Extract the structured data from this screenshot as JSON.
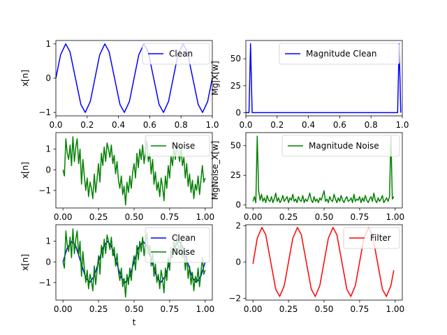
{
  "chart_data": [
    {
      "type": "line",
      "xlabel": "",
      "ylabel": "x[n]",
      "xlim": [
        0,
        1
      ],
      "ylim": [
        -1.1,
        1.1
      ],
      "xticks": [
        0.0,
        0.2,
        0.4,
        0.6,
        0.8,
        1.0
      ],
      "xtick_labels": [
        "0.0",
        "0.2",
        "0.4",
        "0.6",
        "0.8",
        "1.0"
      ],
      "yticks": [
        -1,
        0,
        1
      ],
      "ytick_labels": [
        "−1",
        "0",
        "1"
      ],
      "legend": "top-right",
      "series": [
        {
          "name": "Clean",
          "color": "#0000ff",
          "x": [
            0.0,
            0.03,
            0.063,
            0.09,
            0.125,
            0.16,
            0.188,
            0.22,
            0.25,
            0.28,
            0.313,
            0.34,
            0.375,
            0.41,
            0.438,
            0.47,
            0.5,
            0.53,
            0.563,
            0.59,
            0.625,
            0.66,
            0.688,
            0.72,
            0.75,
            0.78,
            0.813,
            0.84,
            0.875,
            0.91,
            0.938,
            0.97,
            1.0
          ],
          "y": [
            0.0,
            0.68,
            1.0,
            0.77,
            0.0,
            -0.77,
            -1.0,
            -0.68,
            0.0,
            0.68,
            1.0,
            0.77,
            0.0,
            -0.77,
            -1.0,
            -0.68,
            0.0,
            0.68,
            1.0,
            0.77,
            0.0,
            -0.77,
            -1.0,
            -0.68,
            0.0,
            0.68,
            1.0,
            0.77,
            0.0,
            -0.77,
            -1.0,
            -0.68,
            0.0
          ]
        }
      ]
    },
    {
      "type": "line",
      "xlabel": "",
      "ylabel": "Mg|X[w]",
      "xlim": [
        0,
        1
      ],
      "ylim": [
        -3,
        67
      ],
      "xticks": [
        0.0,
        0.2,
        0.4,
        0.6,
        0.8,
        1.0
      ],
      "xtick_labels": [
        "0.0",
        "0.2",
        "0.4",
        "0.6",
        "0.8",
        "1.0"
      ],
      "yticks": [
        0,
        25,
        50
      ],
      "ytick_labels": [
        "0",
        "25",
        "50"
      ],
      "legend": "top-right",
      "series": [
        {
          "name": "Magnitude Clean",
          "color": "#0000ff",
          "x": [
            0.0,
            0.01,
            0.02,
            0.03,
            0.04,
            0.05,
            0.5,
            0.95,
            0.96,
            0.97,
            0.98,
            0.99
          ],
          "y": [
            0,
            0,
            0,
            64,
            0,
            0,
            0,
            0,
            0,
            0,
            64,
            0
          ]
        }
      ]
    },
    {
      "type": "line",
      "xlabel": "",
      "ylabel": "x[n]",
      "xlim": [
        -0.05,
        1.05
      ],
      "ylim": [
        -1.85,
        1.8
      ],
      "xticks": [
        0.0,
        0.25,
        0.5,
        0.75,
        1.0
      ],
      "xtick_labels": [
        "0.00",
        "0.25",
        "0.50",
        "0.75",
        "1.00"
      ],
      "yticks": [
        -1,
        0,
        1
      ],
      "ytick_labels": [
        "−1",
        "0",
        "1"
      ],
      "legend": "top-right",
      "series": [
        {
          "name": "Noise",
          "color": "#008000",
          "x": [
            0.0,
            0.01,
            0.02,
            0.03,
            0.04,
            0.05,
            0.06,
            0.07,
            0.08,
            0.09,
            0.1,
            0.11,
            0.12,
            0.13,
            0.14,
            0.15,
            0.16,
            0.17,
            0.18,
            0.19,
            0.2,
            0.21,
            0.22,
            0.23,
            0.24,
            0.25,
            0.26,
            0.27,
            0.28,
            0.29,
            0.3,
            0.31,
            0.32,
            0.33,
            0.34,
            0.35,
            0.36,
            0.37,
            0.38,
            0.39,
            0.4,
            0.41,
            0.42,
            0.43,
            0.44,
            0.45,
            0.46,
            0.47,
            0.48,
            0.49,
            0.5,
            0.51,
            0.52,
            0.53,
            0.54,
            0.55,
            0.56,
            0.57,
            0.58,
            0.59,
            0.6,
            0.61,
            0.62,
            0.63,
            0.64,
            0.65,
            0.66,
            0.67,
            0.68,
            0.69,
            0.7,
            0.71,
            0.72,
            0.73,
            0.74,
            0.75,
            0.76,
            0.77,
            0.78,
            0.79,
            0.8,
            0.81,
            0.82,
            0.83,
            0.84,
            0.85,
            0.86,
            0.87,
            0.88,
            0.89,
            0.9,
            0.91,
            0.92,
            0.93,
            0.94,
            0.95,
            0.96,
            0.97,
            0.98,
            0.99,
            1.0
          ],
          "y": [
            0.0,
            -0.3,
            1.5,
            0.8,
            0.5,
            1.2,
            0.2,
            1.6,
            0.4,
            1.1,
            1.5,
            0.3,
            1.0,
            -0.7,
            0.5,
            -0.3,
            -1.0,
            -0.4,
            -1.3,
            -0.6,
            -0.9,
            -1.4,
            -0.2,
            -1.1,
            -0.4,
            0.3,
            -0.6,
            0.8,
            0.2,
            1.1,
            0.4,
            1.3,
            1.0,
            0.6,
            1.2,
            0.3,
            0.7,
            -0.2,
            0.4,
            -0.5,
            -0.9,
            -0.3,
            -1.2,
            -0.8,
            -1.7,
            -0.6,
            -1.1,
            -0.3,
            -0.9,
            -0.1,
            0.3,
            -0.4,
            0.8,
            0.1,
            1.0,
            0.5,
            1.2,
            0.3,
            0.9,
            1.4,
            0.4,
            0.8,
            -0.2,
            0.5,
            -0.7,
            -0.1,
            -1.0,
            -0.6,
            -1.3,
            -0.4,
            -0.8,
            -1.5,
            -0.3,
            -0.9,
            0.2,
            -0.4,
            0.7,
            0.2,
            1.0,
            0.5,
            1.3,
            0.8,
            0.4,
            1.1,
            0.2,
            0.6,
            -0.4,
            0.3,
            -0.8,
            -0.2,
            -1.1,
            -0.5,
            -1.4,
            -0.7,
            -1.0,
            -0.3,
            -1.2,
            -0.5,
            0.2,
            -0.6,
            -0.4
          ]
        }
      ]
    },
    {
      "type": "line",
      "xlabel": "",
      "ylabel": "MgNoise_X[w]",
      "xlim": [
        -0.05,
        1.05
      ],
      "ylim": [
        -2.5,
        61
      ],
      "xticks": [
        0.0,
        0.25,
        0.5,
        0.75,
        1.0
      ],
      "xtick_labels": [
        "0.00",
        "0.25",
        "0.50",
        "0.75",
        "1.00"
      ],
      "yticks": [
        0,
        25,
        50
      ],
      "ytick_labels": [
        "0",
        "25",
        "50"
      ],
      "legend": "top-right",
      "series": [
        {
          "name": "Magnitude Noise",
          "color": "#008000",
          "x": [
            0.0,
            0.01,
            0.02,
            0.03,
            0.04,
            0.05,
            0.06,
            0.07,
            0.08,
            0.09,
            0.1,
            0.11,
            0.12,
            0.13,
            0.14,
            0.15,
            0.16,
            0.17,
            0.18,
            0.19,
            0.2,
            0.21,
            0.22,
            0.23,
            0.24,
            0.25,
            0.26,
            0.27,
            0.28,
            0.29,
            0.3,
            0.31,
            0.32,
            0.33,
            0.34,
            0.35,
            0.36,
            0.37,
            0.38,
            0.39,
            0.4,
            0.41,
            0.42,
            0.43,
            0.44,
            0.45,
            0.46,
            0.47,
            0.48,
            0.49,
            0.5,
            0.51,
            0.52,
            0.53,
            0.54,
            0.55,
            0.56,
            0.57,
            0.58,
            0.59,
            0.6,
            0.61,
            0.62,
            0.63,
            0.64,
            0.65,
            0.66,
            0.67,
            0.68,
            0.69,
            0.7,
            0.71,
            0.72,
            0.73,
            0.74,
            0.75,
            0.76,
            0.77,
            0.78,
            0.79,
            0.8,
            0.81,
            0.82,
            0.83,
            0.84,
            0.85,
            0.86,
            0.87,
            0.88,
            0.89,
            0.9,
            0.91,
            0.92,
            0.93,
            0.94,
            0.95,
            0.96,
            0.97,
            0.98,
            0.99
          ],
          "y": [
            3,
            7,
            2,
            58,
            12,
            4,
            9,
            3,
            6,
            2,
            8,
            4,
            3,
            7,
            2,
            5,
            10,
            3,
            6,
            2,
            4,
            8,
            3,
            5,
            7,
            2,
            6,
            4,
            9,
            3,
            5,
            2,
            7,
            4,
            3,
            8,
            2,
            5,
            3,
            6,
            10,
            4,
            2,
            7,
            3,
            5,
            2,
            6,
            4,
            8,
            12,
            3,
            5,
            2,
            7,
            4,
            3,
            9,
            5,
            2,
            6,
            3,
            8,
            4,
            2,
            5,
            7,
            3,
            4,
            6,
            2,
            9,
            3,
            5,
            4,
            7,
            2,
            6,
            3,
            8,
            4,
            2,
            5,
            7,
            3,
            10,
            4,
            2,
            6,
            3,
            5,
            8,
            2,
            4,
            6,
            3,
            7,
            58,
            5,
            7
          ]
        }
      ]
    },
    {
      "type": "line",
      "xlabel": "t",
      "ylabel": "x[n]",
      "xlim": [
        -0.05,
        1.05
      ],
      "ylim": [
        -1.85,
        1.8
      ],
      "xticks": [
        0.0,
        0.25,
        0.5,
        0.75,
        1.0
      ],
      "xtick_labels": [
        "0.00",
        "0.25",
        "0.50",
        "0.75",
        "1.00"
      ],
      "yticks": [
        -1,
        0,
        1
      ],
      "ytick_labels": [
        "−1",
        "0",
        "1"
      ],
      "legend": "top-right",
      "series": [
        {
          "name": "Clean",
          "color": "#0000ff",
          "x": [
            0.0,
            0.03,
            0.063,
            0.09,
            0.125,
            0.16,
            0.188,
            0.22,
            0.25,
            0.28,
            0.313,
            0.34,
            0.375,
            0.41,
            0.438,
            0.47,
            0.5,
            0.53,
            0.563,
            0.59,
            0.625,
            0.66,
            0.688,
            0.72,
            0.75,
            0.78,
            0.813,
            0.84,
            0.875,
            0.91,
            0.938,
            0.97,
            1.0
          ],
          "y": [
            0.0,
            0.68,
            1.0,
            0.77,
            0.0,
            -0.77,
            -1.0,
            -0.68,
            0.0,
            0.68,
            1.0,
            0.77,
            0.0,
            -0.77,
            -1.0,
            -0.68,
            0.0,
            0.68,
            1.0,
            0.77,
            0.0,
            -0.77,
            -1.0,
            -0.68,
            0.0,
            0.68,
            1.0,
            0.77,
            0.0,
            -0.77,
            -1.0,
            -0.68,
            0.0
          ]
        },
        {
          "name": "Noise",
          "color": "#008000",
          "x": [
            0.0,
            0.01,
            0.02,
            0.03,
            0.04,
            0.05,
            0.06,
            0.07,
            0.08,
            0.09,
            0.1,
            0.11,
            0.12,
            0.13,
            0.14,
            0.15,
            0.16,
            0.17,
            0.18,
            0.19,
            0.2,
            0.21,
            0.22,
            0.23,
            0.24,
            0.25,
            0.26,
            0.27,
            0.28,
            0.29,
            0.3,
            0.31,
            0.32,
            0.33,
            0.34,
            0.35,
            0.36,
            0.37,
            0.38,
            0.39,
            0.4,
            0.41,
            0.42,
            0.43,
            0.44,
            0.45,
            0.46,
            0.47,
            0.48,
            0.49,
            0.5,
            0.51,
            0.52,
            0.53,
            0.54,
            0.55,
            0.56,
            0.57,
            0.58,
            0.59,
            0.6,
            0.61,
            0.62,
            0.63,
            0.64,
            0.65,
            0.66,
            0.67,
            0.68,
            0.69,
            0.7,
            0.71,
            0.72,
            0.73,
            0.74,
            0.75,
            0.76,
            0.77,
            0.78,
            0.79,
            0.8,
            0.81,
            0.82,
            0.83,
            0.84,
            0.85,
            0.86,
            0.87,
            0.88,
            0.89,
            0.9,
            0.91,
            0.92,
            0.93,
            0.94,
            0.95,
            0.96,
            0.97,
            0.98,
            0.99,
            1.0
          ],
          "y": [
            0.0,
            -0.3,
            1.5,
            0.8,
            0.5,
            1.2,
            0.2,
            1.6,
            0.4,
            1.1,
            1.5,
            0.3,
            1.0,
            -0.7,
            0.5,
            -0.3,
            -1.0,
            -0.4,
            -1.3,
            -0.6,
            -0.9,
            -1.4,
            -0.2,
            -1.1,
            -0.4,
            0.3,
            -0.6,
            0.8,
            0.2,
            1.1,
            0.4,
            1.3,
            1.0,
            0.6,
            1.2,
            0.3,
            0.7,
            -0.2,
            0.4,
            -0.5,
            -0.9,
            -0.3,
            -1.2,
            -0.8,
            -1.7,
            -0.6,
            -1.1,
            -0.3,
            -0.9,
            -0.1,
            0.3,
            -0.4,
            0.8,
            0.1,
            1.0,
            0.5,
            1.2,
            0.3,
            0.9,
            1.4,
            0.4,
            0.8,
            -0.2,
            0.5,
            -0.7,
            -0.1,
            -1.0,
            -0.6,
            -1.3,
            -0.4,
            -0.8,
            -1.5,
            -0.3,
            -0.9,
            0.2,
            -0.4,
            0.7,
            0.2,
            1.0,
            0.5,
            1.3,
            0.8,
            0.4,
            1.1,
            0.2,
            0.6,
            -0.4,
            0.3,
            -0.8,
            -0.2,
            -1.1,
            -0.5,
            -1.4,
            -0.7,
            -1.0,
            -0.3,
            -1.2,
            -0.5,
            0.2,
            -0.6,
            -0.4
          ]
        }
      ]
    },
    {
      "type": "line",
      "xlabel": "",
      "ylabel": "",
      "xlim": [
        -0.05,
        1.05
      ],
      "ylim": [
        -2.1,
        2.05
      ],
      "xticks": [
        0.0,
        0.25,
        0.5,
        0.75,
        1.0
      ],
      "xtick_labels": [
        "0.00",
        "0.25",
        "0.50",
        "0.75",
        "1.00"
      ],
      "yticks": [
        -2,
        0,
        2
      ],
      "ytick_labels": [
        "−2",
        "0",
        "2"
      ],
      "legend": "top-right",
      "series": [
        {
          "name": "Filter",
          "color": "#ff0000",
          "x": [
            0.0,
            0.03,
            0.063,
            0.09,
            0.125,
            0.16,
            0.188,
            0.22,
            0.25,
            0.28,
            0.313,
            0.34,
            0.375,
            0.41,
            0.438,
            0.47,
            0.5,
            0.53,
            0.563,
            0.59,
            0.625,
            0.66,
            0.688,
            0.72,
            0.75,
            0.78,
            0.813,
            0.84,
            0.875,
            0.91,
            0.938,
            0.97,
            0.99
          ],
          "y": [
            -0.1,
            1.3,
            1.9,
            1.5,
            0.0,
            -1.5,
            -1.9,
            -1.3,
            0.0,
            1.3,
            1.9,
            1.5,
            0.0,
            -1.5,
            -1.9,
            -1.3,
            0.0,
            1.3,
            1.9,
            1.5,
            0.0,
            -1.5,
            -1.9,
            -1.3,
            0.0,
            1.3,
            1.9,
            1.5,
            0.0,
            -1.5,
            -1.9,
            -1.3,
            -0.45
          ]
        }
      ]
    }
  ]
}
